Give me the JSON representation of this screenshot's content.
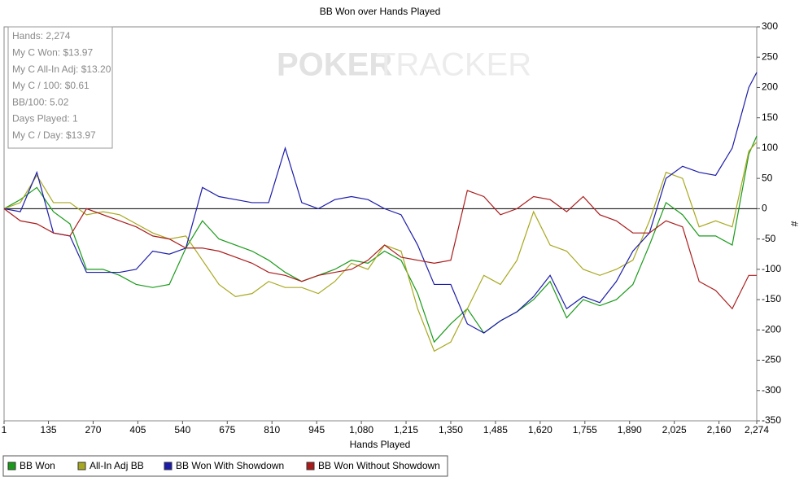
{
  "chart_data": {
    "type": "line",
    "title": "BB Won over Hands Played",
    "x_label": "Hands Played",
    "y_label": "#",
    "watermark": [
      "POKER",
      "TRACKER"
    ],
    "stats": [
      "Hands: 2,274",
      "My C Won: $13.97",
      "My C All-In Adj: $13.20",
      "My C / 100: $0.61",
      "BB/100: 5.02",
      "Days Played: 1",
      "My C / Day: $13.97"
    ],
    "x": [
      1,
      50,
      100,
      150,
      200,
      250,
      300,
      350,
      400,
      450,
      500,
      550,
      600,
      650,
      700,
      750,
      800,
      850,
      900,
      950,
      1000,
      1050,
      1100,
      1150,
      1200,
      1250,
      1300,
      1350,
      1400,
      1450,
      1500,
      1550,
      1600,
      1650,
      1700,
      1750,
      1800,
      1850,
      1900,
      1950,
      2000,
      2050,
      2100,
      2150,
      2200,
      2250,
      2274
    ],
    "series": [
      {
        "name": "BB Won",
        "color": "#1a9a1a",
        "values": [
          0,
          15,
          35,
          -5,
          -25,
          -100,
          -100,
          -110,
          -125,
          -130,
          -125,
          -65,
          -20,
          -50,
          -60,
          -70,
          -85,
          -105,
          -120,
          -110,
          -100,
          -85,
          -90,
          -70,
          -85,
          -140,
          -220,
          -190,
          -165,
          -205,
          -185,
          -170,
          -150,
          -120,
          -180,
          -150,
          -160,
          -150,
          -125,
          -60,
          10,
          -10,
          -45,
          -45,
          -60,
          90,
          120
        ]
      },
      {
        "name": "All-In Adj BB",
        "color": "#a8a820",
        "values": [
          0,
          10,
          55,
          10,
          10,
          -10,
          -5,
          -10,
          -25,
          -40,
          -50,
          -45,
          -85,
          -125,
          -145,
          -140,
          -120,
          -130,
          -130,
          -140,
          -120,
          -90,
          -100,
          -60,
          -70,
          -165,
          -235,
          -220,
          -165,
          -110,
          -125,
          -85,
          -5,
          -60,
          -70,
          -100,
          -110,
          -100,
          -85,
          -20,
          60,
          50,
          -30,
          -20,
          -30,
          95,
          110
        ]
      },
      {
        "name": "BB Won With Showdown",
        "color": "#1c1caa",
        "values": [
          0,
          -5,
          60,
          -40,
          -45,
          -105,
          -105,
          -105,
          -100,
          -70,
          -75,
          -65,
          35,
          20,
          15,
          10,
          10,
          100,
          10,
          0,
          15,
          20,
          15,
          0,
          -10,
          -60,
          -125,
          -125,
          -190,
          -205,
          -185,
          -170,
          -145,
          -110,
          -165,
          -145,
          -155,
          -120,
          -70,
          -40,
          50,
          70,
          60,
          55,
          100,
          200,
          225
        ]
      },
      {
        "name": "BB Won Without Showdown",
        "color": "#aa1c1c",
        "values": [
          0,
          -20,
          -25,
          -40,
          -45,
          0,
          -10,
          -20,
          -30,
          -45,
          -50,
          -65,
          -65,
          -70,
          -80,
          -90,
          -105,
          -110,
          -120,
          -110,
          -105,
          -100,
          -85,
          -60,
          -80,
          -85,
          -90,
          -85,
          30,
          20,
          -10,
          0,
          20,
          15,
          -5,
          20,
          -10,
          -20,
          -40,
          -40,
          -20,
          -30,
          -120,
          -135,
          -165,
          -110,
          -110
        ]
      }
    ],
    "xlim": [
      1,
      2274
    ],
    "xticks": [
      1,
      135,
      270,
      405,
      540,
      675,
      810,
      945,
      {
        "value": 1080,
        "label": "1,080"
      },
      {
        "value": 1215,
        "label": "1,215"
      },
      {
        "value": 1350,
        "label": "1,350"
      },
      {
        "value": 1485,
        "label": "1,485"
      },
      {
        "value": 1620,
        "label": "1,620"
      },
      {
        "value": 1755,
        "label": "1,755"
      },
      {
        "value": 1890,
        "label": "1,890"
      },
      {
        "value": 2025,
        "label": "2,025"
      },
      {
        "value": 2160,
        "label": "2,160"
      },
      {
        "value": 2274,
        "label": "2,274"
      }
    ],
    "ylim": [
      -350,
      300
    ],
    "yticks": [
      300,
      250,
      200,
      150,
      100,
      50,
      0,
      -50,
      -100,
      -150,
      -200,
      -250,
      -300,
      -350
    ]
  }
}
